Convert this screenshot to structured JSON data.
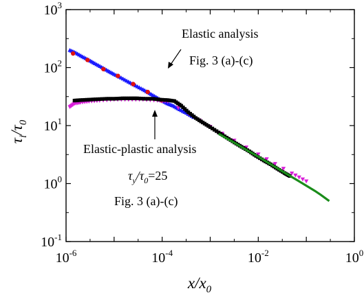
{
  "chart_data": {
    "type": "scatter",
    "x_scale": "log",
    "y_scale": "log",
    "xlim": [
      1e-06,
      1
    ],
    "ylim": [
      0.1,
      1000
    ],
    "x_ticks": [
      {
        "base": "10",
        "exp": "-6"
      },
      {
        "base": "10",
        "exp": "-4"
      },
      {
        "base": "10",
        "exp": "-2"
      },
      {
        "base": "10",
        "exp": "0"
      }
    ],
    "y_ticks": [
      {
        "base": "10",
        "exp": "-1"
      },
      {
        "base": "10",
        "exp": "0"
      },
      {
        "base": "10",
        "exp": "1"
      },
      {
        "base": "10",
        "exp": "2"
      },
      {
        "base": "10",
        "exp": "3"
      }
    ],
    "xlabel": {
      "main": "x/x",
      "sub": "0"
    },
    "ylabel": {
      "main_a": "τ",
      "sub_a": "i",
      "slash": "/τ",
      "sub_b": "0"
    },
    "annotations": {
      "elastic_title": "Elastic analysis",
      "elastic_fig": "Fig. 3 (a)-(c)",
      "ep_title": "Elastic-plastic analysis",
      "ep_ratio_tau": "τ",
      "ep_ratio_sub_y": "y",
      "ep_ratio_slash": "/τ",
      "ep_ratio_sub_0": "0",
      "ep_ratio_value": "=25",
      "ep_fig": "Fig. 3 (a)-(c)"
    },
    "series": [
      {
        "marker": "triangle",
        "color": "#1a1aff",
        "points": [
          [
            1.2e-06,
            200
          ],
          [
            1.6e-06,
            180
          ],
          [
            2.2e-06,
            155
          ],
          [
            3e-06,
            135
          ],
          [
            4e-06,
            118
          ],
          [
            5.5e-06,
            102
          ],
          [
            7.5e-06,
            88
          ],
          [
            1e-05,
            77
          ],
          [
            1.4e-05,
            67
          ],
          [
            2e-05,
            57
          ],
          [
            2.8e-05,
            49
          ],
          [
            4e-05,
            42
          ],
          [
            5.5e-05,
            36
          ],
          [
            7.5e-05,
            31
          ],
          [
            0.0001,
            27
          ],
          [
            0.00013,
            24
          ],
          [
            0.00017,
            22
          ],
          [
            0.00023,
            19
          ],
          [
            0.00032,
            16.5
          ],
          [
            0.00045,
            14
          ]
        ]
      },
      {
        "marker": "circle",
        "color": "#e01010",
        "points": [
          [
            1.4e-06,
            175
          ],
          [
            2.8e-06,
            135
          ],
          [
            6e-06,
            94
          ],
          [
            1.2e-05,
            72
          ],
          [
            2.5e-05,
            52
          ],
          [
            5e-05,
            38
          ],
          [
            0.0001,
            27
          ]
        ]
      },
      {
        "marker": "triangle-down",
        "color": "#d81fd8",
        "points": [
          [
            1.2e-06,
            21
          ],
          [
            1.5e-06,
            24
          ],
          [
            2e-06,
            25
          ],
          [
            3e-06,
            26
          ],
          [
            5e-06,
            27
          ],
          [
            1e-05,
            28
          ],
          [
            2e-05,
            28
          ],
          [
            4e-05,
            28
          ],
          [
            8e-05,
            27
          ],
          [
            0.00013,
            26
          ],
          [
            0.001,
            9.6
          ],
          [
            0.01,
            3.2
          ],
          [
            0.05,
            1.5
          ],
          [
            0.1,
            1.1
          ]
        ]
      },
      {
        "marker": "square",
        "color": "#000000",
        "points": [
          [
            1.5e-06,
            27
          ],
          [
            2e-06,
            27.5
          ],
          [
            3e-06,
            28
          ],
          [
            4.5e-06,
            28.5
          ],
          [
            7e-06,
            29
          ],
          [
            1e-05,
            29
          ],
          [
            1.5e-05,
            29.5
          ],
          [
            2.2e-05,
            29.5
          ],
          [
            3e-05,
            29.5
          ],
          [
            4.5e-05,
            29
          ],
          [
            6.5e-05,
            29
          ],
          [
            9e-05,
            28
          ],
          [
            0.00013,
            27.5
          ],
          [
            0.00018,
            26.5
          ],
          [
            0.00025,
            22
          ],
          [
            0.00035,
            17
          ],
          [
            0.0005,
            13.5
          ],
          [
            0.0007,
            11.3
          ],
          [
            0.001,
            9.4
          ],
          [
            0.0015,
            7.6
          ],
          [
            0.0022,
            6.2
          ],
          [
            0.0032,
            5.1
          ],
          [
            0.0045,
            4.3
          ],
          [
            0.0065,
            3.6
          ],
          [
            0.009,
            3.0
          ],
          [
            0.013,
            2.5
          ],
          [
            0.018,
            2.15
          ],
          [
            0.025,
            1.8
          ],
          [
            0.035,
            1.52
          ],
          [
            0.045,
            1.35
          ]
        ]
      },
      {
        "marker": "line",
        "color": "#1a8c1a",
        "points": [
          [
            0.0015,
            7.2
          ],
          [
            0.003,
            5.2
          ],
          [
            0.006,
            3.7
          ],
          [
            0.01,
            2.9
          ],
          [
            0.02,
            2.05
          ],
          [
            0.04,
            1.45
          ],
          [
            0.07,
            1.1
          ],
          [
            0.1,
            0.92
          ],
          [
            0.15,
            0.75
          ],
          [
            0.2,
            0.64
          ],
          [
            0.3,
            0.5
          ]
        ]
      }
    ]
  }
}
